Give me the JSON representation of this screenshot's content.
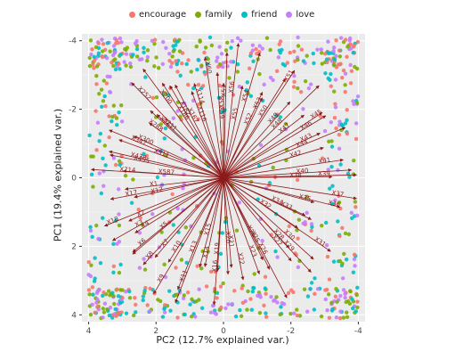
{
  "chart_data": {
    "type": "scatter",
    "xlabel": "PC2 (12.7% explained var.)",
    "ylabel": "PC1 (19.4% explained var.)",
    "xlim": [
      4.2,
      -4.2
    ],
    "ylim": [
      -4.2,
      4.2
    ],
    "x_ticks": [
      4,
      2,
      0,
      -2,
      -4
    ],
    "y_ticks": [
      -4,
      -2,
      0,
      2,
      4
    ],
    "grid": true,
    "legend_position": "top",
    "series": [
      {
        "name": "encourage",
        "color": "#F8766D"
      },
      {
        "name": "family",
        "color": "#7CAE00"
      },
      {
        "name": "friend",
        "color": "#00BFC4"
      },
      {
        "name": "love",
        "color": "#C77CFF"
      }
    ],
    "arrow_color": "#8B1A1A",
    "arrow_labels": [
      "X1",
      "X17",
      "X12",
      "X18",
      "X2",
      "X3",
      "X4",
      "X5",
      "X6",
      "X7",
      "X8",
      "X9",
      "X10",
      "X11",
      "X13",
      "X14",
      "X15",
      "X16",
      "X19",
      "X20",
      "X21",
      "X22",
      "X23",
      "X24",
      "X25",
      "X26",
      "X27",
      "X28",
      "X29",
      "X30",
      "X31",
      "X32",
      "X33",
      "X34",
      "X35",
      "X36",
      "X37",
      "X38",
      "X39",
      "X40",
      "X41",
      "X42",
      "X43",
      "X44",
      "X45",
      "X46",
      "X47",
      "X48",
      "X49",
      "X50",
      "X51",
      "X52",
      "X53",
      "X54",
      "X55",
      "X56",
      "X57",
      "X58",
      "X59",
      "X60",
      "X114",
      "X116",
      "X167",
      "X182",
      "X186",
      "X200",
      "X211",
      "X252",
      "X267",
      "X288",
      "X300",
      "X311",
      "X347",
      "X438",
      "X455",
      "X587",
      "X714"
    ]
  }
}
